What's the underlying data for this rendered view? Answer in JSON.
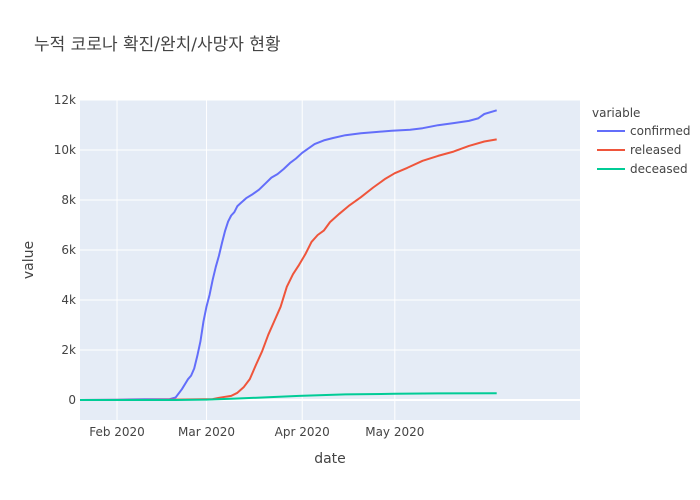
{
  "chart_data": {
    "type": "line",
    "title": "누적 코로나 확진/완치/사망자 현황",
    "xlabel": "date",
    "ylabel": "value",
    "x_axis_type": "date",
    "xlim": [
      "2020-01-20",
      "2020-06-30"
    ],
    "ylim": [
      -800,
      12000
    ],
    "x_ticks": [
      {
        "date": "2020-02-01",
        "label": "Feb 2020"
      },
      {
        "date": "2020-03-01",
        "label": "Mar 2020"
      },
      {
        "date": "2020-04-01",
        "label": "Apr 2020"
      },
      {
        "date": "2020-05-01",
        "label": "May 2020"
      }
    ],
    "y_ticks": [
      {
        "value": 0,
        "label": "0"
      },
      {
        "value": 2000,
        "label": "2k"
      },
      {
        "value": 4000,
        "label": "4k"
      },
      {
        "value": 6000,
        "label": "6k"
      },
      {
        "value": 8000,
        "label": "8k"
      },
      {
        "value": 10000,
        "label": "10k"
      },
      {
        "value": 12000,
        "label": "12k"
      }
    ],
    "grid": true,
    "legend": {
      "title": "variable",
      "placement": "right"
    },
    "series": [
      {
        "name": "confirmed",
        "color": "#636efa",
        "points": [
          [
            "2020-01-20",
            1
          ],
          [
            "2020-02-01",
            12
          ],
          [
            "2020-02-10",
            27
          ],
          [
            "2020-02-18",
            31
          ],
          [
            "2020-02-20",
            104
          ],
          [
            "2020-02-22",
            433
          ],
          [
            "2020-02-24",
            833
          ],
          [
            "2020-02-25",
            977
          ],
          [
            "2020-02-26",
            1261
          ],
          [
            "2020-02-27",
            1766
          ],
          [
            "2020-02-28",
            2337
          ],
          [
            "2020-02-29",
            3150
          ],
          [
            "2020-03-01",
            3736
          ],
          [
            "2020-03-02",
            4212
          ],
          [
            "2020-03-03",
            4812
          ],
          [
            "2020-03-04",
            5328
          ],
          [
            "2020-03-05",
            5766
          ],
          [
            "2020-03-06",
            6284
          ],
          [
            "2020-03-07",
            6767
          ],
          [
            "2020-03-08",
            7134
          ],
          [
            "2020-03-09",
            7382
          ],
          [
            "2020-03-10",
            7513
          ],
          [
            "2020-03-11",
            7755
          ],
          [
            "2020-03-12",
            7869
          ],
          [
            "2020-03-14",
            8086
          ],
          [
            "2020-03-16",
            8236
          ],
          [
            "2020-03-18",
            8413
          ],
          [
            "2020-03-20",
            8652
          ],
          [
            "2020-03-22",
            8897
          ],
          [
            "2020-03-24",
            9037
          ],
          [
            "2020-03-26",
            9241
          ],
          [
            "2020-03-28",
            9478
          ],
          [
            "2020-03-30",
            9661
          ],
          [
            "2020-04-01",
            9887
          ],
          [
            "2020-04-03",
            10062
          ],
          [
            "2020-04-05",
            10237
          ],
          [
            "2020-04-08",
            10384
          ],
          [
            "2020-04-11",
            10480
          ],
          [
            "2020-04-15",
            10591
          ],
          [
            "2020-04-20",
            10674
          ],
          [
            "2020-04-25",
            10718
          ],
          [
            "2020-04-30",
            10774
          ],
          [
            "2020-05-06",
            10810
          ],
          [
            "2020-05-10",
            10874
          ],
          [
            "2020-05-15",
            10991
          ],
          [
            "2020-05-20",
            11078
          ],
          [
            "2020-05-25",
            11165
          ],
          [
            "2020-05-28",
            11265
          ],
          [
            "2020-05-30",
            11441
          ],
          [
            "2020-06-03",
            11590
          ]
        ]
      },
      {
        "name": "released",
        "color": "#ef553b",
        "points": [
          [
            "2020-01-20",
            0
          ],
          [
            "2020-02-10",
            3
          ],
          [
            "2020-02-20",
            16
          ],
          [
            "2020-02-29",
            27
          ],
          [
            "2020-03-03",
            34
          ],
          [
            "2020-03-05",
            88
          ],
          [
            "2020-03-07",
            130
          ],
          [
            "2020-03-09",
            166
          ],
          [
            "2020-03-11",
            288
          ],
          [
            "2020-03-13",
            510
          ],
          [
            "2020-03-15",
            834
          ],
          [
            "2020-03-17",
            1401
          ],
          [
            "2020-03-19",
            1947
          ],
          [
            "2020-03-21",
            2612
          ],
          [
            "2020-03-23",
            3166
          ],
          [
            "2020-03-25",
            3730
          ],
          [
            "2020-03-27",
            4528
          ],
          [
            "2020-03-29",
            5033
          ],
          [
            "2020-03-31",
            5408
          ],
          [
            "2020-04-02",
            5828
          ],
          [
            "2020-04-04",
            6325
          ],
          [
            "2020-04-06",
            6598
          ],
          [
            "2020-04-08",
            6776
          ],
          [
            "2020-04-10",
            7117
          ],
          [
            "2020-04-13",
            7447
          ],
          [
            "2020-04-16",
            7757
          ],
          [
            "2020-04-20",
            8114
          ],
          [
            "2020-04-24",
            8501
          ],
          [
            "2020-04-28",
            8854
          ],
          [
            "2020-05-01",
            9072
          ],
          [
            "2020-05-05",
            9283
          ],
          [
            "2020-05-10",
            9568
          ],
          [
            "2020-05-15",
            9762
          ],
          [
            "2020-05-20",
            9938
          ],
          [
            "2020-05-25",
            10162
          ],
          [
            "2020-05-30",
            10340
          ],
          [
            "2020-06-03",
            10422
          ]
        ]
      },
      {
        "name": "deceased",
        "color": "#00cc96",
        "points": [
          [
            "2020-01-20",
            0
          ],
          [
            "2020-02-20",
            1
          ],
          [
            "2020-03-01",
            17
          ],
          [
            "2020-03-10",
            54
          ],
          [
            "2020-03-20",
            102
          ],
          [
            "2020-03-31",
            162
          ],
          [
            "2020-04-15",
            225
          ],
          [
            "2020-05-01",
            250
          ],
          [
            "2020-05-15",
            262
          ],
          [
            "2020-06-03",
            273
          ]
        ]
      }
    ]
  }
}
